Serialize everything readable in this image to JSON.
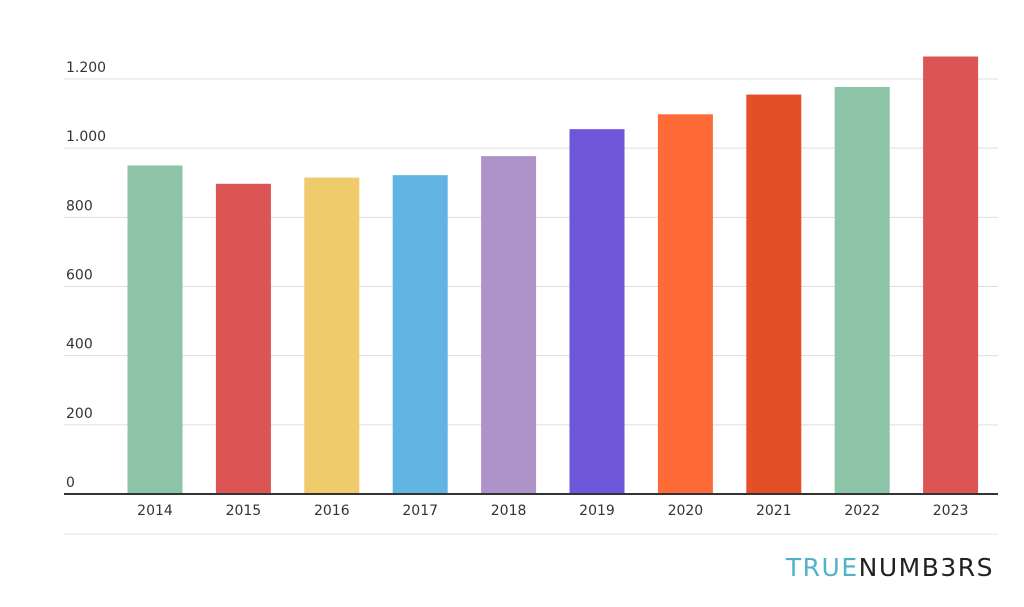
{
  "chart_data": {
    "type": "bar",
    "categories": [
      "2014",
      "2015",
      "2016",
      "2017",
      "2018",
      "2019",
      "2020",
      "2021",
      "2022",
      "2023"
    ],
    "values": [
      950,
      897,
      915,
      922,
      977,
      1055,
      1098,
      1155,
      1177,
      1265
    ],
    "colors": [
      "#8dc3a7",
      "#dc5454",
      "#f0cb6c",
      "#62b5e3",
      "#ad93c8",
      "#6e56db",
      "#fe6a38",
      "#e35027",
      "#8dc3a7",
      "#dc5454"
    ],
    "yticks": [
      0,
      200,
      400,
      600,
      800,
      1000,
      1200
    ],
    "ytick_labels": [
      "0",
      "200",
      "400",
      "600",
      "800",
      "1.000",
      "1.200"
    ],
    "ylim": [
      0,
      1300
    ],
    "grid": true,
    "legend": "none"
  },
  "branding": {
    "part1": "TRUE",
    "part2": "NUMB3RS"
  }
}
